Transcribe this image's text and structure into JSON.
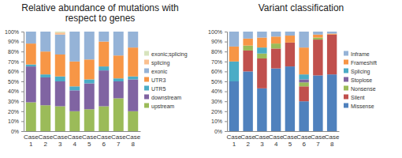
{
  "chart_data": [
    {
      "type": "bar",
      "title": "Relative abundance of mutations with respect to genes",
      "stacked": true,
      "legend": "right",
      "categories": [
        "Case 1",
        "Case 2",
        "Case 3",
        "Case 4",
        "Case 5",
        "Case 6",
        "Case 7",
        "Case 8"
      ],
      "ylim": [
        0,
        100
      ],
      "yticks": [
        {
          "value": 0,
          "label": "0%"
        },
        {
          "value": 10,
          "label": "10%"
        },
        {
          "value": 20,
          "label": "20%"
        },
        {
          "value": 30,
          "label": "30%"
        },
        {
          "value": 40,
          "label": "40%"
        },
        {
          "value": 50,
          "label": "50%"
        },
        {
          "value": 60,
          "label": "60%"
        },
        {
          "value": 70,
          "label": "70%"
        },
        {
          "value": 80,
          "label": "80%"
        },
        {
          "value": 90,
          "label": "90%"
        },
        {
          "value": 100,
          "label": "100%"
        }
      ],
      "series": [
        {
          "name": "upstream",
          "color": "#9bbb59",
          "values": [
            29,
            26,
            25,
            20,
            22,
            25,
            33,
            20
          ]
        },
        {
          "name": "downstream",
          "color": "#8064a2",
          "values": [
            36,
            28,
            25,
            21,
            26,
            36,
            17,
            32
          ]
        },
        {
          "name": "UTR5",
          "color": "#4bacc6",
          "values": [
            2,
            3,
            5,
            4,
            4,
            4,
            3,
            3
          ]
        },
        {
          "name": "UTR3",
          "color": "#f79646",
          "values": [
            21,
            23,
            22,
            25,
            20,
            25,
            23,
            29
          ]
        },
        {
          "name": "exonic",
          "color": "#95b3d7",
          "values": [
            12,
            20,
            20,
            30,
            28,
            10,
            24,
            16
          ]
        },
        {
          "name": "splicing",
          "color": "#fac090",
          "values": [
            0,
            0,
            2,
            0,
            0,
            0,
            0,
            0
          ]
        },
        {
          "name": "exonic;splicing",
          "color": "#d7e4bd",
          "values": [
            0,
            0,
            1,
            0,
            0,
            0,
            0,
            0
          ]
        }
      ]
    },
    {
      "type": "bar",
      "title": "Variant classification",
      "stacked": true,
      "legend": "right",
      "categories": [
        "Case 1",
        "Case 2",
        "Case 3",
        "Case 4",
        "Case 5",
        "Case 6",
        "Case 7",
        "Case 8"
      ],
      "ylim": [
        0,
        100
      ],
      "yticks": [
        {
          "value": 0,
          "label": "0%"
        },
        {
          "value": 10,
          "label": "10%"
        },
        {
          "value": 20,
          "label": "20%"
        },
        {
          "value": 30,
          "label": "30%"
        },
        {
          "value": 40,
          "label": "40%"
        },
        {
          "value": 50,
          "label": "50%"
        },
        {
          "value": 60,
          "label": "60%"
        },
        {
          "value": 70,
          "label": "70%"
        },
        {
          "value": 80,
          "label": "80%"
        },
        {
          "value": 90,
          "label": "90%"
        },
        {
          "value": 100,
          "label": "100%"
        }
      ],
      "series": [
        {
          "name": "Missense",
          "color": "#4f81bd",
          "values": [
            50,
            60,
            43,
            63,
            65,
            30,
            56,
            57
          ]
        },
        {
          "name": "Silent",
          "color": "#c0504d",
          "values": [
            0,
            21,
            30,
            20,
            24,
            15,
            36,
            40
          ]
        },
        {
          "name": "Nonsense",
          "color": "#9bbb59",
          "values": [
            0,
            5,
            5,
            5,
            0,
            4,
            2,
            0
          ]
        },
        {
          "name": "Stoplose",
          "color": "#8064a2",
          "values": [
            0,
            0,
            0,
            0,
            0,
            3,
            0,
            0
          ]
        },
        {
          "name": "Splicing",
          "color": "#4bacc6",
          "values": [
            20,
            0,
            6,
            0,
            0,
            5,
            0,
            0
          ]
        },
        {
          "name": "Frameshift",
          "color": "#f79646",
          "values": [
            15,
            7,
            10,
            7,
            7,
            27,
            3,
            1
          ]
        },
        {
          "name": "Inframe",
          "color": "#95b3d7",
          "values": [
            15,
            7,
            6,
            5,
            4,
            16,
            3,
            2
          ]
        }
      ]
    }
  ]
}
